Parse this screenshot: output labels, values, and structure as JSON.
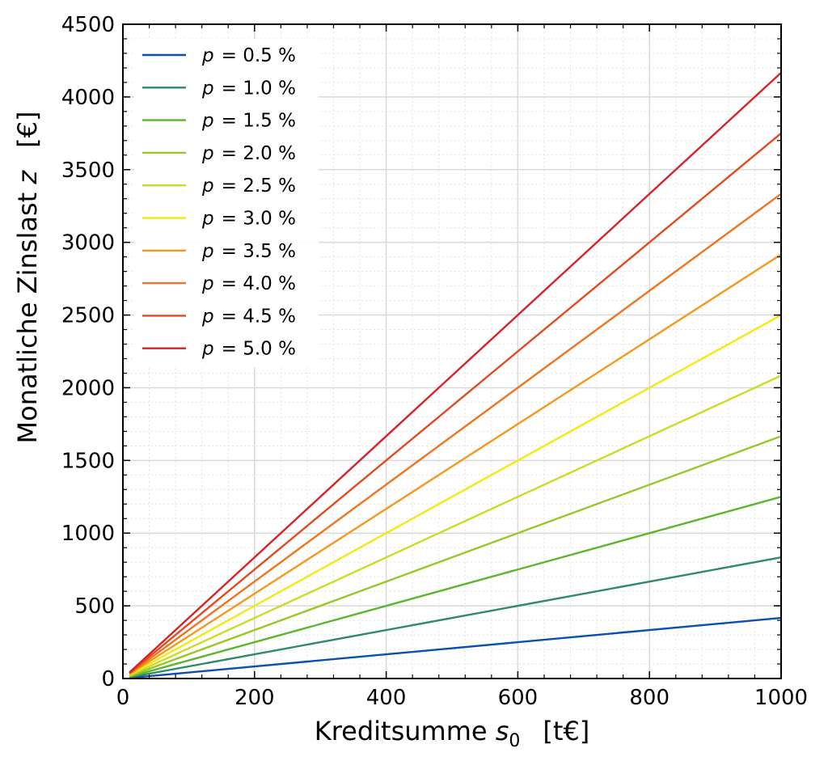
{
  "chart_data": {
    "type": "line",
    "xlabel_main": "Kreditsumme ",
    "xlabel_var": "s",
    "xlabel_sub": "0",
    "xlabel_unit": "[t€]",
    "ylabel_main": "Monatliche Zinslast ",
    "ylabel_var": "z",
    "ylabel_unit": "[€]",
    "xlim": [
      0,
      1000
    ],
    "ylim": [
      0,
      4500
    ],
    "x_ticks": [
      0,
      200,
      400,
      600,
      800,
      1000
    ],
    "y_ticks": [
      0,
      500,
      1000,
      1500,
      2000,
      2500,
      3000,
      3500,
      4000,
      4500
    ],
    "grid": true,
    "legend_position": "top-left",
    "legend_var": "p",
    "series": [
      {
        "name": "= 0.5 %",
        "color": "#0a50b0",
        "x": [
          10,
          1000
        ],
        "y": [
          4.17,
          416.7
        ]
      },
      {
        "name": "= 1.0 %",
        "color": "#2e8a6a",
        "x": [
          10,
          1000
        ],
        "y": [
          8.33,
          833.3
        ]
      },
      {
        "name": "= 1.5 %",
        "color": "#5cb52e",
        "x": [
          10,
          1000
        ],
        "y": [
          12.5,
          1250
        ]
      },
      {
        "name": "= 2.0 %",
        "color": "#96c828",
        "x": [
          10,
          1000
        ],
        "y": [
          16.7,
          1666.7
        ]
      },
      {
        "name": "= 2.5 %",
        "color": "#cbdc24",
        "x": [
          10,
          1000
        ],
        "y": [
          20.8,
          2083.3
        ]
      },
      {
        "name": "= 3.0 %",
        "color": "#f2ea10",
        "x": [
          10,
          1000
        ],
        "y": [
          25.0,
          2500
        ]
      },
      {
        "name": "= 3.5 %",
        "color": "#f29a1e",
        "x": [
          10,
          1000
        ],
        "y": [
          29.2,
          2916.7
        ]
      },
      {
        "name": "= 4.0 %",
        "color": "#ec7520",
        "x": [
          10,
          1000
        ],
        "y": [
          33.3,
          3333.3
        ]
      },
      {
        "name": "= 4.5 %",
        "color": "#e04b22",
        "x": [
          10,
          1000
        ],
        "y": [
          37.5,
          3750
        ]
      },
      {
        "name": "= 5.0 %",
        "color": "#d42427",
        "x": [
          10,
          1000
        ],
        "y": [
          41.7,
          4166.7
        ]
      }
    ]
  }
}
